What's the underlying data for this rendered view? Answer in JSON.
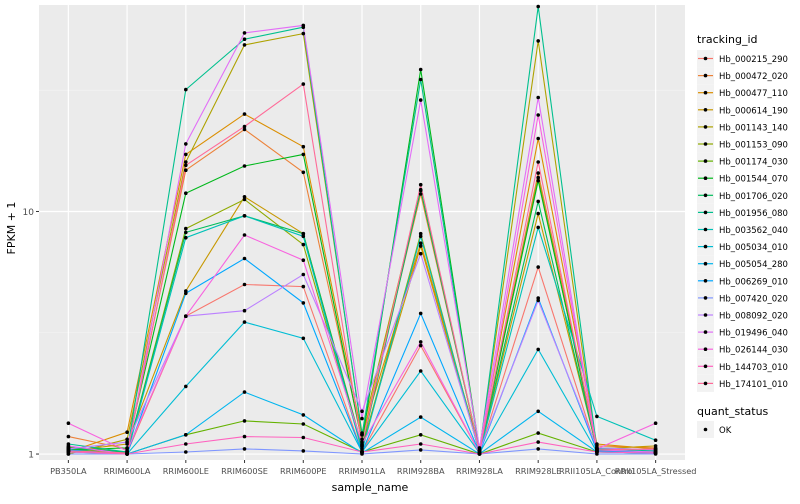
{
  "chart_data": {
    "type": "line",
    "xlabel": "sample_name",
    "ylabel": "FPKM + 1",
    "y_scale": "log10",
    "ylim": [
      0.945,
      71
    ],
    "y_ticks": [
      {
        "value": 1,
        "label": "1"
      },
      {
        "value": 10,
        "label": "10"
      }
    ],
    "grid": true,
    "legend_position": "right",
    "categories": [
      "PB350LA",
      "RRIM600LA",
      "RRIM600LE",
      "RRIM600SE",
      "RRIM600PE",
      "RRIM901LA",
      "RRIM928BA",
      "RRIM928LA",
      "RRIM928LE",
      "RRII105LA_Control",
      "RRII105LA_Stressed"
    ],
    "legend_title": "tracking_id",
    "series": [
      {
        "name": "Hb_000215_290",
        "color": "#F8766D",
        "values": [
          1.06,
          1.01,
          3.7,
          5.0,
          4.9,
          1.02,
          2.8,
          1.01,
          5.9,
          1.03,
          1.02
        ]
      },
      {
        "name": "Hb_000472_020",
        "color": "#EC8239",
        "values": [
          1.18,
          1.05,
          14.8,
          21.8,
          14.5,
          1.15,
          11.8,
          1.03,
          14.4,
          1.08,
          1.06
        ]
      },
      {
        "name": "Hb_000477_110",
        "color": "#DB8E00",
        "values": [
          1.02,
          1.23,
          17.2,
          25.2,
          18.5,
          1.2,
          7.4,
          1.05,
          20.0,
          1.1,
          1.05
        ]
      },
      {
        "name": "Hb_000614_190",
        "color": "#C79800",
        "values": [
          1.03,
          1.1,
          4.7,
          11.5,
          8.1,
          1.08,
          7.2,
          1.02,
          9.8,
          1.05,
          1.08
        ]
      },
      {
        "name": "Hb_001143_140",
        "color": "#AEA200",
        "values": [
          1.0,
          1.15,
          16.0,
          48.6,
          54.1,
          1.22,
          12.2,
          1.03,
          50.5,
          1.02,
          1.02
        ]
      },
      {
        "name": "Hb_001153_090",
        "color": "#8FAA00",
        "values": [
          1.07,
          1.02,
          8.5,
          11.2,
          7.3,
          1.05,
          8.1,
          1.01,
          13.8,
          1.03,
          1.01
        ]
      },
      {
        "name": "Hb_001174_030",
        "color": "#64B200",
        "values": [
          1.05,
          1.0,
          1.2,
          1.37,
          1.33,
          1.02,
          1.2,
          1.0,
          1.22,
          1.02,
          1.01
        ]
      },
      {
        "name": "Hb_001544_070",
        "color": "#00B81B",
        "values": [
          1.04,
          1.06,
          11.9,
          15.4,
          17.2,
          1.12,
          38.5,
          1.04,
          13.4,
          1.06,
          1.04
        ]
      },
      {
        "name": "Hb_001706_020",
        "color": "#00BD5C",
        "values": [
          1.06,
          1.02,
          8.2,
          9.6,
          8.1,
          1.07,
          12.3,
          1.02,
          11.0,
          1.04,
          1.02
        ]
      },
      {
        "name": "Hb_001956_080",
        "color": "#00C08E",
        "values": [
          1.1,
          1.02,
          31.8,
          51.3,
          57.5,
          1.2,
          35.0,
          1.02,
          70.0,
          1.05,
          1.03
        ]
      },
      {
        "name": "Hb_003562_040",
        "color": "#00C1B7",
        "values": [
          1.03,
          1.0,
          7.8,
          9.6,
          7.9,
          1.03,
          7.9,
          1.01,
          8.6,
          1.43,
          1.14
        ]
      },
      {
        "name": "Hb_005034_010",
        "color": "#00BDD4",
        "values": [
          1.02,
          1.0,
          1.9,
          3.5,
          3.0,
          1.02,
          2.2,
          1.01,
          2.7,
          1.02,
          1.01
        ]
      },
      {
        "name": "Hb_005054_280",
        "color": "#00B5EE",
        "values": [
          1.03,
          1.0,
          1.2,
          1.8,
          1.45,
          1.01,
          1.42,
          1.0,
          1.5,
          1.02,
          1.01
        ]
      },
      {
        "name": "Hb_006269_010",
        "color": "#00A7FF",
        "values": [
          1.04,
          1.0,
          4.6,
          6.4,
          4.2,
          1.02,
          3.8,
          1.01,
          4.4,
          1.03,
          1.01
        ]
      },
      {
        "name": "Hb_007420_020",
        "color": "#7F96FF",
        "values": [
          1.0,
          1.0,
          1.02,
          1.05,
          1.03,
          1.0,
          1.04,
          1.0,
          1.05,
          1.0,
          1.0
        ]
      },
      {
        "name": "Hb_008092_020",
        "color": "#BC81FF",
        "values": [
          1.05,
          1.12,
          3.7,
          3.9,
          5.5,
          1.5,
          6.7,
          1.03,
          4.3,
          1.06,
          1.04
        ]
      },
      {
        "name": "Hb_019496_040",
        "color": "#E26EF7",
        "values": [
          1.08,
          1.0,
          19.0,
          54.5,
          58.5,
          1.4,
          28.8,
          1.06,
          29.5,
          1.04,
          1.02
        ]
      },
      {
        "name": "Hb_026144_030",
        "color": "#F863DF",
        "values": [
          1.34,
          1.03,
          3.7,
          8.0,
          6.3,
          1.1,
          2.9,
          1.01,
          25.0,
          1.05,
          1.34
        ]
      },
      {
        "name": "Hb_144703_010",
        "color": "#FF62BF",
        "values": [
          1.02,
          1.0,
          1.1,
          1.18,
          1.17,
          1.02,
          1.1,
          1.0,
          1.12,
          1.02,
          1.01
        ]
      },
      {
        "name": "Hb_174101_010",
        "color": "#FF6A98",
        "values": [
          1.03,
          1.01,
          15.5,
          22.4,
          33.5,
          1.09,
          12.9,
          1.02,
          16.0,
          1.04,
          1.05
        ]
      }
    ],
    "shape_legend": {
      "title": "quant_status",
      "entries": [
        {
          "label": "OK",
          "color": "#000000"
        }
      ]
    }
  }
}
